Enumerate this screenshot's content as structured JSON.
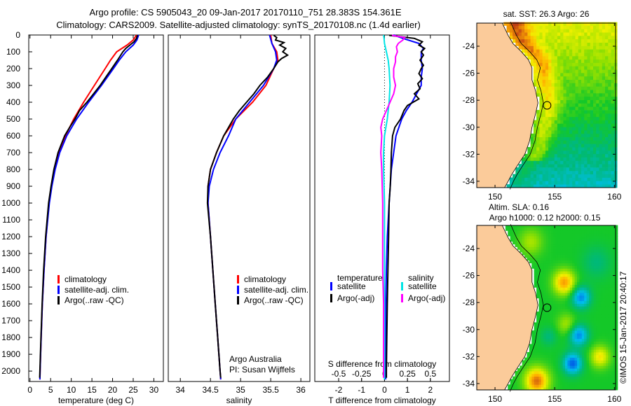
{
  "header": {
    "line1": "Argo profile: CS 5905043_20 09-Jan-2017 20170110_751 28.383S 154.361E",
    "line2": "Climatology: CARS2009. Satellite-adjusted climatology: synTS_20170108.nc (1.4d earlier)"
  },
  "footer_stamp": "©IMOS 15-Jan-2017 20:40:17",
  "colors": {
    "climatology": "#ff0000",
    "satellite": "#0000ff",
    "argo": "#000000",
    "sal_sat": "#00e5e5",
    "sal_argo": "#ff00ff",
    "land": "#fbcb9a"
  },
  "chart_data": [
    {
      "id": "temperature",
      "type": "line",
      "xlabel": "temperature (deg C)",
      "ylabel": "",
      "xlim": [
        -0.3,
        32.3
      ],
      "ylim": [
        2062,
        0
      ],
      "xticks": [
        0,
        5,
        10,
        15,
        20,
        25,
        30
      ],
      "yticks": [
        0,
        100,
        200,
        300,
        400,
        500,
        600,
        700,
        800,
        900,
        1000,
        1100,
        1200,
        1300,
        1400,
        1500,
        1600,
        1700,
        1800,
        1900,
        2000
      ],
      "legend": {
        "position": "lower-left",
        "entries": [
          "climatology",
          "satellite-adj. clim.",
          "Argo(..raw -QC)"
        ]
      },
      "series": [
        {
          "name": "climatology",
          "color": "#ff0000",
          "depth": [
            0,
            30,
            60,
            100,
            150,
            200,
            300,
            400,
            500,
            600,
            700,
            800,
            900,
            1000,
            1200,
            1400,
            1600,
            1800,
            2000,
            2050
          ],
          "values": [
            25.8,
            25.0,
            23.5,
            21.0,
            19.5,
            18.2,
            15.6,
            13.0,
            10.6,
            8.6,
            7.0,
            6.0,
            5.2,
            4.6,
            3.9,
            3.4,
            3.0,
            2.7,
            2.45,
            2.4
          ]
        },
        {
          "name": "satellite-adj. clim.",
          "color": "#0000ff",
          "depth": [
            0,
            30,
            60,
            100,
            150,
            200,
            300,
            400,
            500,
            600,
            700,
            800,
            900,
            1000,
            1200,
            1400,
            1600,
            1800,
            2000,
            2050
          ],
          "values": [
            26.3,
            25.9,
            25.0,
            23.2,
            21.6,
            20.2,
            17.3,
            14.2,
            11.3,
            8.9,
            7.2,
            6.1,
            5.3,
            4.7,
            3.9,
            3.4,
            3.0,
            2.7,
            2.45,
            2.4
          ]
        },
        {
          "name": "Argo(..raw -QC)",
          "color": "#000000",
          "depth": [
            2,
            20,
            40,
            60,
            80,
            100,
            150,
            200,
            250,
            300,
            350,
            400,
            450,
            500,
            550,
            600,
            700,
            800,
            900,
            1000,
            1200,
            1400,
            1600,
            1800,
            2000,
            2040
          ],
          "values": [
            26.0,
            25.8,
            25.2,
            24.2,
            23.2,
            22.5,
            21.2,
            19.8,
            18.4,
            17.0,
            15.4,
            13.8,
            12.0,
            10.9,
            9.6,
            8.4,
            6.8,
            5.8,
            5.1,
            4.5,
            3.8,
            3.3,
            2.95,
            2.65,
            2.4,
            2.35
          ]
        }
      ]
    },
    {
      "id": "salinity",
      "type": "line",
      "xlabel": "salinity",
      "ylabel": "",
      "xlim": [
        33.8,
        36.15
      ],
      "ylim": [
        2062,
        0
      ],
      "xticks": [
        34,
        34.5,
        35,
        35.5,
        36
      ],
      "yticks": [],
      "legend": {
        "position": "lower-right",
        "entries": [
          "climatology",
          "satellite-adj. clim.",
          "Argo(..raw -QC)"
        ]
      },
      "annotations": [
        "Argo Australia",
        "PI: Susan Wijffels"
      ],
      "series": [
        {
          "name": "climatology",
          "color": "#ff0000",
          "depth": [
            0,
            50,
            100,
            150,
            200,
            300,
            400,
            500,
            600,
            700,
            800,
            900,
            1000,
            1200,
            1400,
            1600,
            1800,
            2000,
            2050
          ],
          "values": [
            35.5,
            35.52,
            35.6,
            35.62,
            35.55,
            35.42,
            35.2,
            34.92,
            34.72,
            34.6,
            34.5,
            34.46,
            34.46,
            34.5,
            34.54,
            34.58,
            34.62,
            34.66,
            34.67
          ]
        },
        {
          "name": "satellite-adj. clim.",
          "color": "#0000ff",
          "depth": [
            0,
            50,
            100,
            150,
            200,
            300,
            400,
            500,
            600,
            700,
            800,
            900,
            1000,
            1200,
            1400,
            1600,
            1800,
            2000,
            2050
          ],
          "values": [
            35.48,
            35.52,
            35.58,
            35.6,
            35.55,
            35.38,
            35.15,
            34.92,
            34.8,
            34.66,
            34.55,
            34.48,
            34.46,
            34.5,
            34.54,
            34.58,
            34.62,
            34.66,
            34.67
          ]
        },
        {
          "name": "Argo(..raw -QC)",
          "color": "#000000",
          "depth": [
            2,
            15,
            30,
            45,
            60,
            80,
            100,
            120,
            140,
            160,
            200,
            250,
            300,
            350,
            400,
            450,
            500,
            550,
            600,
            700,
            800,
            900,
            1000,
            1200,
            1400,
            1600,
            1800,
            2000,
            2040
          ],
          "values": [
            35.55,
            35.6,
            35.58,
            35.72,
            35.65,
            35.75,
            35.7,
            35.78,
            35.68,
            35.62,
            35.55,
            35.45,
            35.32,
            35.22,
            35.1,
            34.98,
            34.88,
            34.8,
            34.72,
            34.6,
            34.5,
            34.46,
            34.45,
            34.5,
            34.54,
            34.58,
            34.62,
            34.66,
            34.67
          ]
        }
      ]
    },
    {
      "id": "difference",
      "type": "line",
      "xlabel": "T difference from climatology",
      "xlabel_top": "S difference from climatology",
      "ylabel": "",
      "xlim": [
        -3.04,
        2.83
      ],
      "ylim": [
        2062,
        0
      ],
      "xticks": [
        -2,
        -1,
        0,
        1,
        2
      ],
      "xticks_top": [
        -0.5,
        -0.25,
        0,
        0.25,
        0.5
      ],
      "xticks_top_labels": [
        "-0.5",
        "-0.25",
        "0",
        "0.25",
        "0.5"
      ],
      "yticks": [],
      "legend": {
        "position": "lower-center",
        "headings": [
          "temperature",
          "salinity"
        ],
        "entries": [
          "satellite",
          "Argo(-adj)",
          "satellite",
          "Argo(-adj)"
        ]
      },
      "series": [
        {
          "name": "temperature satellite",
          "color": "#0000ff",
          "units": "T",
          "depth": [
            0,
            20,
            50,
            80,
            100,
            150,
            200,
            250,
            300,
            350,
            400,
            450,
            500,
            600,
            700,
            800,
            1000,
            1200,
            1400,
            1600,
            2000,
            2050
          ],
          "values": [
            0.4,
            0.8,
            1.5,
            1.7,
            1.6,
            1.6,
            1.65,
            1.6,
            1.6,
            1.4,
            1.2,
            0.95,
            0.75,
            0.5,
            0.4,
            0.3,
            0.2,
            0.12,
            0.08,
            0.06,
            0.05,
            0.05
          ]
        },
        {
          "name": "temperature Argo(-adj)",
          "color": "#000000",
          "units": "T",
          "depth": [
            2,
            20,
            40,
            60,
            80,
            100,
            120,
            150,
            180,
            200,
            230,
            260,
            290,
            320,
            350,
            380,
            420,
            450,
            500,
            550,
            600,
            700,
            800,
            900,
            1000,
            1200,
            1400,
            1600,
            1800,
            2000,
            2040
          ],
          "values": [
            0.2,
            1.3,
            1.65,
            1.5,
            1.75,
            1.6,
            1.7,
            1.55,
            1.7,
            1.6,
            1.5,
            1.65,
            1.45,
            1.55,
            1.3,
            1.5,
            1.0,
            0.85,
            0.7,
            0.45,
            0.35,
            0.3,
            0.28,
            0.25,
            0.2,
            0.18,
            0.15,
            0.12,
            0.1,
            0.08,
            0.08
          ]
        },
        {
          "name": "salinity satellite",
          "color": "#00e5e5",
          "units": "S",
          "depth": [
            0,
            20,
            50,
            100,
            150,
            200,
            300,
            400,
            500,
            600,
            700,
            800,
            1000,
            1200,
            1400,
            1600,
            2000,
            2050
          ],
          "values": [
            -0.01,
            -0.005,
            0.0,
            0.02,
            0.04,
            0.05,
            0.06,
            0.05,
            0.03,
            0.0,
            -0.01,
            -0.01,
            0.0,
            0.0,
            0.0,
            0.0,
            0.0,
            0.0
          ]
        },
        {
          "name": "salinity Argo(-adj)",
          "color": "#ff00ff",
          "units": "S",
          "depth": [
            2,
            15,
            30,
            50,
            70,
            100,
            130,
            160,
            200,
            250,
            300,
            350,
            400,
            450,
            500,
            550,
            600,
            700,
            800,
            1000,
            1200,
            1400,
            1600,
            1800,
            2000,
            2040
          ],
          "values": [
            0.08,
            0.22,
            0.2,
            0.15,
            0.13,
            0.14,
            0.12,
            0.12,
            0.1,
            0.1,
            0.12,
            0.1,
            0.06,
            0.02,
            -0.02,
            -0.04,
            -0.03,
            -0.04,
            -0.03,
            -0.02,
            -0.02,
            -0.02,
            -0.01,
            -0.01,
            -0.01,
            -0.01
          ]
        }
      ]
    },
    {
      "id": "sst-map",
      "type": "heatmap",
      "title": "sat. SST: 26.3 Argo: 26",
      "xlim": [
        148.47,
        160.1
      ],
      "ylim": [
        -34.47,
        -22.29
      ],
      "xticks": [
        150,
        155,
        160
      ],
      "yticks": [
        -24,
        -26,
        -28,
        -30,
        -32,
        -34
      ],
      "marker": {
        "lon": 154.361,
        "lat": -28.383
      }
    },
    {
      "id": "sla-map",
      "type": "heatmap",
      "title": "Altim. SLA: 0.16",
      "subtitle": "Argo h1000: 0.12 h2000: 0.15",
      "xlim": [
        148.47,
        160.1
      ],
      "ylim": [
        -34.47,
        -22.29
      ],
      "xticks": [
        150,
        155,
        160
      ],
      "yticks": [
        -24,
        -26,
        -28,
        -30,
        -32,
        -34
      ],
      "marker": {
        "lon": 154.361,
        "lat": -28.383
      }
    }
  ]
}
